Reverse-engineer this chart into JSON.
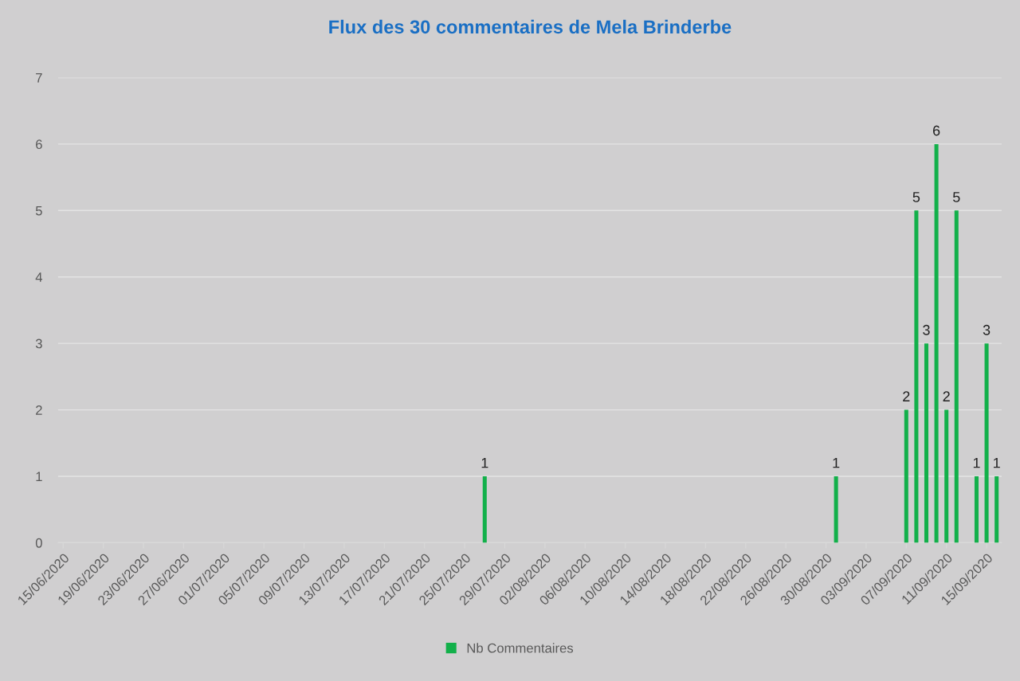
{
  "chart_data": {
    "type": "bar",
    "title": "Flux des 30 commentaires de Mela Brinderbe",
    "x": [
      "2020-07-27",
      "2020-08-31",
      "2020-09-07",
      "2020-09-08",
      "2020-09-09",
      "2020-09-10",
      "2020-09-11",
      "2020-09-12",
      "2020-09-14",
      "2020-09-15",
      "2020-09-16"
    ],
    "series": [
      {
        "name": "Nb Commentaires",
        "color": "#12b04a",
        "values": [
          1,
          1,
          2,
          5,
          3,
          6,
          2,
          5,
          1,
          3,
          1
        ]
      }
    ],
    "xlim": [
      "2020-06-14T12:00",
      "2020-09-16T12:00"
    ],
    "xticks": [
      {
        "value": "2020-06-15",
        "label": "15/06/2020"
      },
      {
        "value": "2020-06-19",
        "label": "19/06/2020"
      },
      {
        "value": "2020-06-23",
        "label": "23/06/2020"
      },
      {
        "value": "2020-06-27",
        "label": "27/06/2020"
      },
      {
        "value": "2020-07-01",
        "label": "01/07/2020"
      },
      {
        "value": "2020-07-05",
        "label": "05/07/2020"
      },
      {
        "value": "2020-07-09",
        "label": "09/07/2020"
      },
      {
        "value": "2020-07-13",
        "label": "13/07/2020"
      },
      {
        "value": "2020-07-17",
        "label": "17/07/2020"
      },
      {
        "value": "2020-07-21",
        "label": "21/07/2020"
      },
      {
        "value": "2020-07-25",
        "label": "25/07/2020"
      },
      {
        "value": "2020-07-29",
        "label": "29/07/2020"
      },
      {
        "value": "2020-08-02",
        "label": "02/08/2020"
      },
      {
        "value": "2020-08-06",
        "label": "06/08/2020"
      },
      {
        "value": "2020-08-10",
        "label": "10/08/2020"
      },
      {
        "value": "2020-08-14",
        "label": "14/08/2020"
      },
      {
        "value": "2020-08-18",
        "label": "18/08/2020"
      },
      {
        "value": "2020-08-22",
        "label": "22/08/2020"
      },
      {
        "value": "2020-08-26",
        "label": "26/08/2020"
      },
      {
        "value": "2020-08-30",
        "label": "30/08/2020"
      },
      {
        "value": "2020-09-03",
        "label": "03/09/2020"
      },
      {
        "value": "2020-09-07",
        "label": "07/09/2020"
      },
      {
        "value": "2020-09-11",
        "label": "11/09/2020"
      },
      {
        "value": "2020-09-15",
        "label": "15/09/2020"
      }
    ],
    "ylim": [
      0,
      7
    ],
    "yticks": [
      0,
      1,
      2,
      3,
      4,
      5,
      6,
      7
    ],
    "grid": "y",
    "legend": "bottom",
    "data_labels": true
  }
}
